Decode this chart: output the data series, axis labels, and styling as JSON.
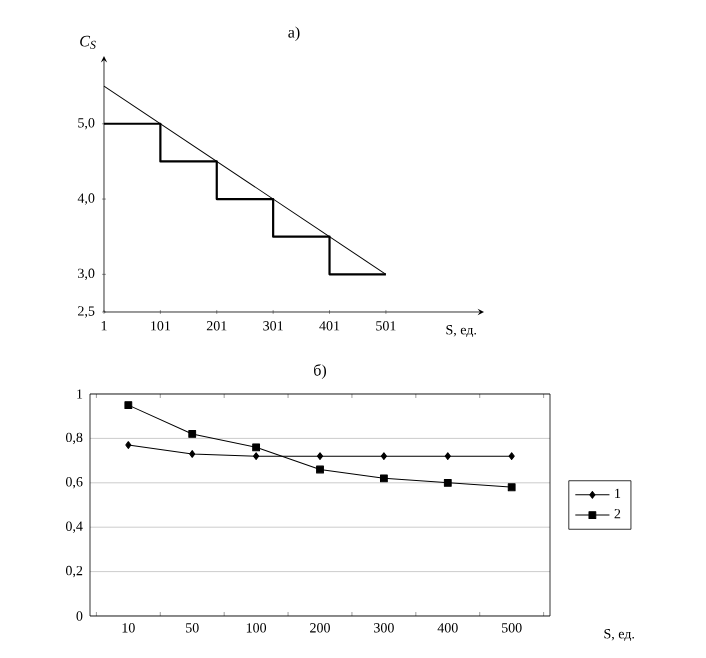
{
  "chart_data": [
    {
      "type": "line",
      "title": "а)",
      "xlabel": "S, ед.",
      "ylabel": "C$_{S}$",
      "x": [
        1,
        101,
        201,
        301,
        401,
        501
      ],
      "series": [
        {
          "type": "step",
          "color": "#000000",
          "values": [
            5.0,
            4.5,
            4.0,
            3.5,
            3.0,
            3.0
          ]
        },
        {
          "type": "line",
          "color": "#000000",
          "x": [
            1,
            501
          ],
          "values": [
            5.5,
            3.0
          ]
        }
      ],
      "xlim": [
        1,
        675
      ],
      "xticks": [
        1,
        101,
        201,
        301,
        401,
        501
      ],
      "ylim": [
        2.5,
        5.9
      ],
      "yticks": [
        {
          "value": 2.5,
          "label": "2,5"
        },
        {
          "value": 3,
          "label": "3,0"
        },
        {
          "value": 4,
          "label": "4,0"
        },
        {
          "value": 5,
          "label": "5,0"
        }
      ],
      "grid": false,
      "legend": false,
      "marker": "none",
      "line_style": "solid"
    },
    {
      "type": "line",
      "title": "б)",
      "xlabel": "S, ед.",
      "categories": [
        "10",
        "50",
        "100",
        "200",
        "300",
        "400",
        "500"
      ],
      "series": [
        {
          "name": "1",
          "color": "#000000",
          "marker": "diamond",
          "values": [
            0.77,
            0.73,
            0.72,
            0.72,
            0.72,
            0.72,
            0.72
          ]
        },
        {
          "name": "2",
          "color": "#000000",
          "marker": "square",
          "values": [
            0.95,
            0.82,
            0.76,
            0.66,
            0.62,
            0.6,
            0.58
          ]
        }
      ],
      "ylim": [
        0,
        1
      ],
      "yticks": [
        0,
        {
          "value": 0.2,
          "label": "0,2"
        },
        {
          "value": 0.4,
          "label": "0,4"
        },
        {
          "value": 0.6,
          "label": "0,6"
        },
        {
          "value": 0.8,
          "label": "0,8"
        },
        1
      ],
      "grid": "y",
      "legend": "right",
      "line_style": "solid"
    }
  ]
}
